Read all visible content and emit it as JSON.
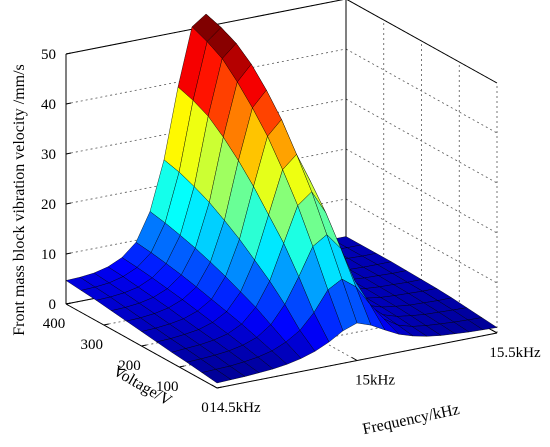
{
  "chart_data": {
    "type": "surface",
    "title": "",
    "xlabel": "Frequency/kHz",
    "ylabel": "Voltage/V",
    "zlabel": "Front mass block vibration velocity /mm/s",
    "x_ticks": [
      "14.5kHz",
      "15kHz",
      "15.5kHz"
    ],
    "y_ticks": [
      "0",
      "100",
      "200",
      "300",
      "400"
    ],
    "z_ticks": [
      "0",
      "10",
      "20",
      "30",
      "40",
      "50"
    ],
    "xlim": [
      14.5,
      15.5
    ],
    "ylim": [
      0,
      400
    ],
    "zlim": [
      0,
      50
    ],
    "colormap": "jet",
    "grid": true,
    "frequency_kHz": [
      14.5,
      14.55,
      14.6,
      14.65,
      14.7,
      14.75,
      14.8,
      14.85,
      14.9,
      14.95,
      15.0,
      15.05,
      15.1,
      15.15,
      15.2,
      15.25,
      15.3,
      15.35,
      15.4,
      15.45,
      15.5
    ],
    "voltage_V": [
      0,
      40,
      80,
      120,
      160,
      200,
      240,
      280,
      320,
      360,
      400
    ],
    "velocity_mm_s": [
      [
        1.0,
        1.1,
        1.2,
        1.4,
        1.6,
        2.0,
        2.6,
        3.5,
        4.8,
        6.5,
        7.5,
        6.5,
        5.0,
        3.6,
        2.7,
        2.1,
        1.7,
        1.5,
        1.3,
        1.2,
        1.1
      ],
      [
        1.4,
        1.5,
        1.6,
        1.9,
        2.3,
        3.0,
        4.2,
        6.0,
        9.0,
        13.0,
        14.6,
        12.5,
        8.5,
        5.0,
        3.2,
        2.4,
        2.0,
        1.8,
        1.6,
        1.5,
        1.4
      ],
      [
        1.8,
        1.9,
        2.1,
        2.4,
        3.0,
        4.0,
        6.0,
        9.5,
        14.5,
        20.0,
        21.8,
        18.5,
        11.5,
        6.0,
        3.6,
        2.7,
        2.3,
        2.0,
        1.9,
        1.8,
        1.7
      ],
      [
        2.1,
        2.3,
        2.5,
        2.9,
        3.6,
        5.0,
        7.8,
        12.5,
        19.5,
        26.5,
        28.7,
        24.0,
        14.0,
        6.8,
        3.8,
        2.9,
        2.5,
        2.2,
        2.1,
        2.0,
        2.0
      ],
      [
        2.5,
        2.6,
        2.9,
        3.3,
        4.2,
        5.8,
        9.2,
        15.0,
        23.5,
        32.0,
        34.5,
        28.5,
        16.0,
        7.2,
        3.9,
        3.0,
        2.6,
        2.4,
        2.3,
        2.2,
        2.2
      ],
      [
        2.9,
        3.0,
        3.3,
        3.8,
        4.8,
        6.6,
        10.6,
        17.5,
        27.5,
        37.0,
        39.8,
        32.5,
        17.5,
        7.5,
        4.0,
        3.1,
        2.7,
        2.5,
        2.4,
        2.3,
        2.3
      ],
      [
        3.3,
        3.4,
        3.7,
        4.3,
        5.4,
        7.4,
        11.8,
        19.6,
        31.0,
        41.0,
        44.0,
        35.5,
        18.5,
        7.6,
        4.1,
        3.2,
        2.8,
        2.6,
        2.5,
        2.4,
        2.4
      ],
      [
        3.7,
        3.8,
        4.1,
        4.7,
        5.9,
        8.1,
        12.9,
        21.5,
        34.0,
        44.5,
        47.5,
        38.0,
        19.3,
        7.7,
        4.1,
        3.2,
        2.8,
        2.6,
        2.5,
        2.5,
        2.5
      ],
      [
        4.1,
        4.2,
        4.5,
        5.1,
        6.4,
        8.7,
        13.8,
        23.0,
        36.5,
        47.5,
        50.0,
        39.5,
        19.8,
        7.8,
        4.2,
        3.3,
        2.9,
        2.7,
        2.6,
        2.5,
        2.5
      ],
      [
        4.4,
        4.5,
        4.8,
        5.5,
        6.8,
        9.2,
        14.6,
        24.2,
        38.0,
        49.2,
        51.5,
        40.5,
        20.0,
        7.8,
        4.2,
        3.3,
        2.9,
        2.7,
        2.6,
        2.5,
        2.5
      ],
      [
        4.7,
        4.8,
        5.1,
        5.8,
        7.1,
        9.6,
        15.2,
        25.0,
        39.0,
        50.5,
        52.5,
        41.0,
        20.2,
        7.9,
        4.2,
        3.3,
        2.9,
        2.7,
        2.6,
        2.5,
        2.5
      ]
    ]
  }
}
